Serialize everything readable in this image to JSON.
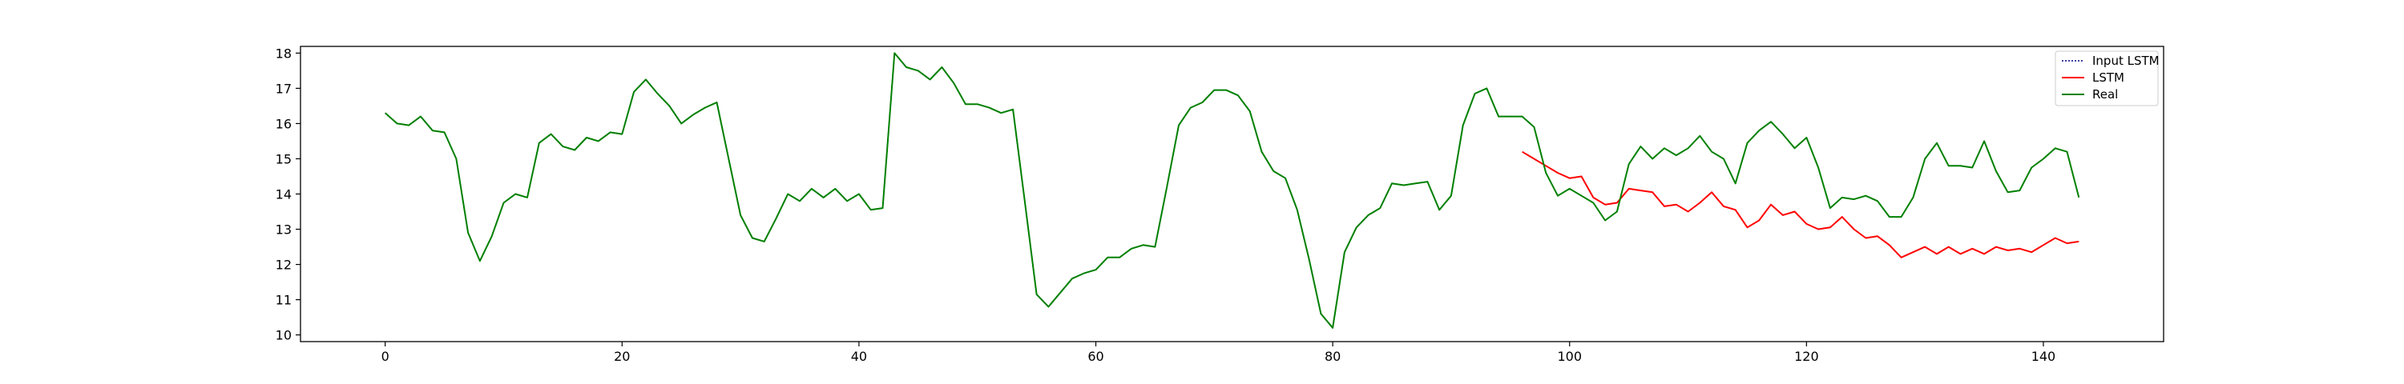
{
  "chart_data": {
    "type": "line",
    "title": "",
    "xlabel": "",
    "ylabel": "",
    "xlim": [
      -7.15,
      150.15
    ],
    "ylim": [
      9.81,
      18.19
    ],
    "grid": false,
    "legend_position": "top-right",
    "x_ticks": [
      0,
      20,
      40,
      60,
      80,
      100,
      120,
      140
    ],
    "y_ticks": [
      10,
      11,
      12,
      13,
      14,
      15,
      16,
      17,
      18
    ],
    "series": [
      {
        "name": "Input LSTM",
        "color": "#00008b",
        "style": "dotted",
        "x_start": 0,
        "values": [
          16.3,
          16.0,
          15.95,
          16.2,
          15.8,
          15.75,
          15.0,
          12.9,
          12.1,
          12.8,
          13.75,
          14.0,
          13.9,
          15.45,
          15.7,
          15.35,
          15.25,
          15.6,
          15.5,
          15.75,
          15.7,
          16.9,
          17.25,
          16.85,
          16.5,
          16.0,
          16.25,
          16.45,
          16.6,
          15.0,
          13.4,
          12.75,
          12.65,
          13.3,
          14.0,
          13.8,
          14.15,
          13.9,
          14.15,
          13.8,
          14.0,
          13.55,
          13.6,
          18.0,
          17.6,
          17.5,
          17.25,
          17.6,
          17.15,
          16.55,
          16.55,
          16.45,
          16.3,
          16.4,
          13.8,
          11.15,
          10.8,
          11.2,
          11.6,
          11.75,
          11.85,
          12.2,
          12.2,
          12.45,
          12.55,
          12.5,
          14.2,
          15.95,
          16.45,
          16.6,
          16.95,
          16.95,
          16.8,
          16.35,
          15.2,
          14.65,
          14.45,
          13.55,
          12.15,
          10.6,
          10.2,
          12.35,
          13.05,
          13.4,
          13.6,
          14.3,
          14.25,
          14.3,
          14.35,
          13.55,
          13.95,
          15.95,
          16.85,
          17.0,
          16.2,
          16.2,
          16.2
        ]
      },
      {
        "name": "LSTM",
        "color": "#ff0000",
        "style": "solid",
        "x_start": 96,
        "values": [
          15.2,
          15.0,
          14.8,
          14.6,
          14.45,
          14.5,
          13.9,
          13.7,
          13.75,
          14.15,
          14.1,
          14.05,
          13.65,
          13.7,
          13.5,
          13.75,
          14.05,
          13.65,
          13.55,
          13.05,
          13.25,
          13.7,
          13.4,
          13.5,
          13.15,
          13.0,
          13.05,
          13.35,
          13.0,
          12.75,
          12.8,
          12.55,
          12.2,
          12.35,
          12.5,
          12.3,
          12.5,
          12.3,
          12.45,
          12.3,
          12.5,
          12.4,
          12.45,
          12.35,
          12.55,
          12.75,
          12.6,
          12.65
        ]
      },
      {
        "name": "Real",
        "color": "#008000",
        "style": "solid",
        "x_start": 0,
        "values": [
          16.3,
          16.0,
          15.95,
          16.2,
          15.8,
          15.75,
          15.0,
          12.9,
          12.1,
          12.8,
          13.75,
          14.0,
          13.9,
          15.45,
          15.7,
          15.35,
          15.25,
          15.6,
          15.5,
          15.75,
          15.7,
          16.9,
          17.25,
          16.85,
          16.5,
          16.0,
          16.25,
          16.45,
          16.6,
          15.0,
          13.4,
          12.75,
          12.65,
          13.3,
          14.0,
          13.8,
          14.15,
          13.9,
          14.15,
          13.8,
          14.0,
          13.55,
          13.6,
          18.0,
          17.6,
          17.5,
          17.25,
          17.6,
          17.15,
          16.55,
          16.55,
          16.45,
          16.3,
          16.4,
          13.8,
          11.15,
          10.8,
          11.2,
          11.6,
          11.75,
          11.85,
          12.2,
          12.2,
          12.45,
          12.55,
          12.5,
          14.2,
          15.95,
          16.45,
          16.6,
          16.95,
          16.95,
          16.8,
          16.35,
          15.2,
          14.65,
          14.45,
          13.55,
          12.15,
          10.6,
          10.2,
          12.35,
          13.05,
          13.4,
          13.6,
          14.3,
          14.25,
          14.3,
          14.35,
          13.55,
          13.95,
          15.95,
          16.85,
          17.0,
          16.2,
          16.2,
          16.2,
          15.9,
          14.6,
          13.95,
          14.15,
          13.95,
          13.75,
          13.25,
          13.5,
          14.85,
          15.35,
          15.0,
          15.3,
          15.1,
          15.3,
          15.65,
          15.2,
          15.0,
          14.3,
          15.45,
          15.8,
          16.05,
          15.7,
          15.3,
          15.6,
          14.75,
          13.6,
          13.9,
          13.85,
          13.95,
          13.8,
          13.35,
          13.35,
          13.9,
          15.0,
          15.45,
          14.8,
          14.8,
          14.75,
          15.5,
          14.65,
          14.05,
          14.1,
          14.75,
          15.0,
          15.3,
          15.2,
          13.9
        ]
      }
    ]
  }
}
